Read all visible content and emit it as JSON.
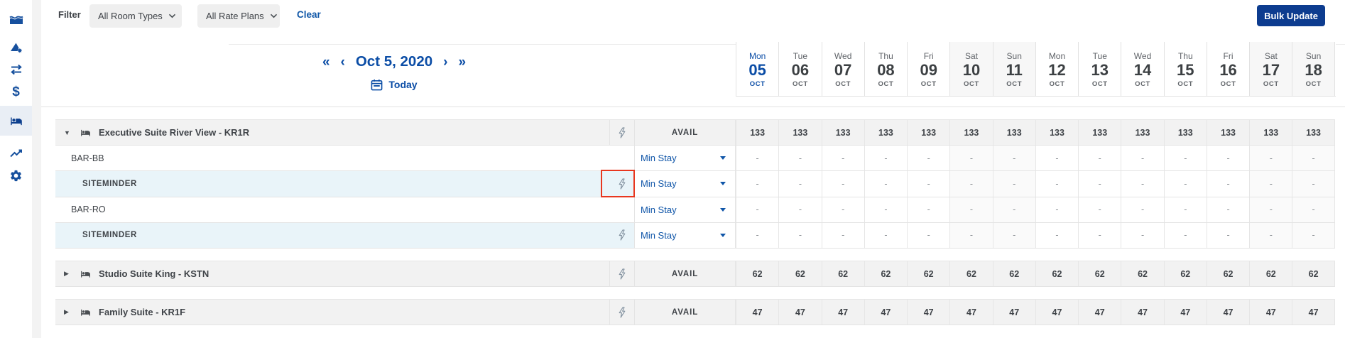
{
  "colors": {
    "accent_blue": "#0b4da6",
    "link_blue": "#1158a8",
    "navy_button_bg": "#0d3c8f",
    "channel_row_bg": "#e9f4f9",
    "room_row_bg": "#f2f2f2",
    "weekend_bg": "#fafafa",
    "annotation_red": "#e8371f"
  },
  "sidebar": {
    "items": [
      {
        "id": "performance",
        "icon": "area-chart",
        "active": false
      },
      {
        "id": "analytics",
        "icon": "mountain-gear",
        "active": false
      },
      {
        "id": "comparison",
        "icon": "swap-arrows",
        "active": false
      },
      {
        "id": "rates",
        "icon": "dollar",
        "active": false
      },
      {
        "id": "inventory",
        "icon": "bed",
        "active": true
      },
      {
        "id": "trends",
        "icon": "trend-up",
        "active": false
      },
      {
        "id": "settings",
        "icon": "gear",
        "active": false
      }
    ]
  },
  "filter_bar": {
    "label": "Filter",
    "room_types_value": "All Room Types",
    "rate_plans_value": "All Rate Plans",
    "clear_label": "Clear",
    "bulk_update_label": "Bulk Update"
  },
  "date_nav": {
    "first_arrow": "«",
    "prev_arrow": "‹",
    "date": "Oct 5, 2020",
    "next_arrow": "›",
    "last_arrow": "»",
    "today_label": "Today"
  },
  "calendar": {
    "days": [
      {
        "dow": "Mon",
        "num": "05",
        "month": "OCT",
        "today": true,
        "weekend": false
      },
      {
        "dow": "Tue",
        "num": "06",
        "month": "OCT",
        "today": false,
        "weekend": false
      },
      {
        "dow": "Wed",
        "num": "07",
        "month": "OCT",
        "today": false,
        "weekend": false
      },
      {
        "dow": "Thu",
        "num": "08",
        "month": "OCT",
        "today": false,
        "weekend": false
      },
      {
        "dow": "Fri",
        "num": "09",
        "month": "OCT",
        "today": false,
        "weekend": false
      },
      {
        "dow": "Sat",
        "num": "10",
        "month": "OCT",
        "today": false,
        "weekend": true
      },
      {
        "dow": "Sun",
        "num": "11",
        "month": "OCT",
        "today": false,
        "weekend": true
      },
      {
        "dow": "Mon",
        "num": "12",
        "month": "OCT",
        "today": false,
        "weekend": false
      },
      {
        "dow": "Tue",
        "num": "13",
        "month": "OCT",
        "today": false,
        "weekend": false
      },
      {
        "dow": "Wed",
        "num": "14",
        "month": "OCT",
        "today": false,
        "weekend": false
      },
      {
        "dow": "Thu",
        "num": "15",
        "month": "OCT",
        "today": false,
        "weekend": false
      },
      {
        "dow": "Fri",
        "num": "16",
        "month": "OCT",
        "today": false,
        "weekend": false
      },
      {
        "dow": "Sat",
        "num": "17",
        "month": "OCT",
        "today": false,
        "weekend": true
      },
      {
        "dow": "Sun",
        "num": "18",
        "month": "OCT",
        "today": false,
        "weekend": true
      }
    ]
  },
  "grid": {
    "sections": [
      {
        "rows": [
          {
            "type": "room",
            "label": "Executive Suite River View - KR1R",
            "expanded": true,
            "pin": true,
            "metric": "AVAIL",
            "values": [
              "133",
              "133",
              "133",
              "133",
              "133",
              "133",
              "133",
              "133",
              "133",
              "133",
              "133",
              "133",
              "133",
              "133"
            ]
          },
          {
            "type": "rate",
            "label": "BAR-BB",
            "pin": false,
            "control": "Min Stay",
            "values": [
              "-",
              "-",
              "-",
              "-",
              "-",
              "-",
              "-",
              "-",
              "-",
              "-",
              "-",
              "-",
              "-",
              "-"
            ]
          },
          {
            "type": "channel",
            "label": "SITEMINDER",
            "pin": true,
            "control": "Min Stay",
            "annotated": true,
            "values": [
              "-",
              "-",
              "-",
              "-",
              "-",
              "-",
              "-",
              "-",
              "-",
              "-",
              "-",
              "-",
              "-",
              "-"
            ]
          },
          {
            "type": "rate",
            "label": "BAR-RO",
            "pin": false,
            "control": "Min Stay",
            "values": [
              "-",
              "-",
              "-",
              "-",
              "-",
              "-",
              "-",
              "-",
              "-",
              "-",
              "-",
              "-",
              "-",
              "-"
            ]
          },
          {
            "type": "channel",
            "label": "SITEMINDER",
            "pin": true,
            "control": "Min Stay",
            "annotated": false,
            "values": [
              "-",
              "-",
              "-",
              "-",
              "-",
              "-",
              "-",
              "-",
              "-",
              "-",
              "-",
              "-",
              "-",
              "-"
            ]
          }
        ]
      },
      {
        "rows": [
          {
            "type": "room",
            "label": "Studio Suite King - KSTN",
            "expanded": false,
            "pin": true,
            "metric": "AVAIL",
            "values": [
              "62",
              "62",
              "62",
              "62",
              "62",
              "62",
              "62",
              "62",
              "62",
              "62",
              "62",
              "62",
              "62",
              "62"
            ]
          }
        ]
      },
      {
        "rows": [
          {
            "type": "room",
            "label": "Family Suite - KR1F",
            "expanded": false,
            "pin": true,
            "metric": "AVAIL",
            "values": [
              "47",
              "47",
              "47",
              "47",
              "47",
              "47",
              "47",
              "47",
              "47",
              "47",
              "47",
              "47",
              "47",
              "47"
            ]
          }
        ]
      }
    ]
  },
  "annotation": {
    "color": "#e8371f"
  }
}
